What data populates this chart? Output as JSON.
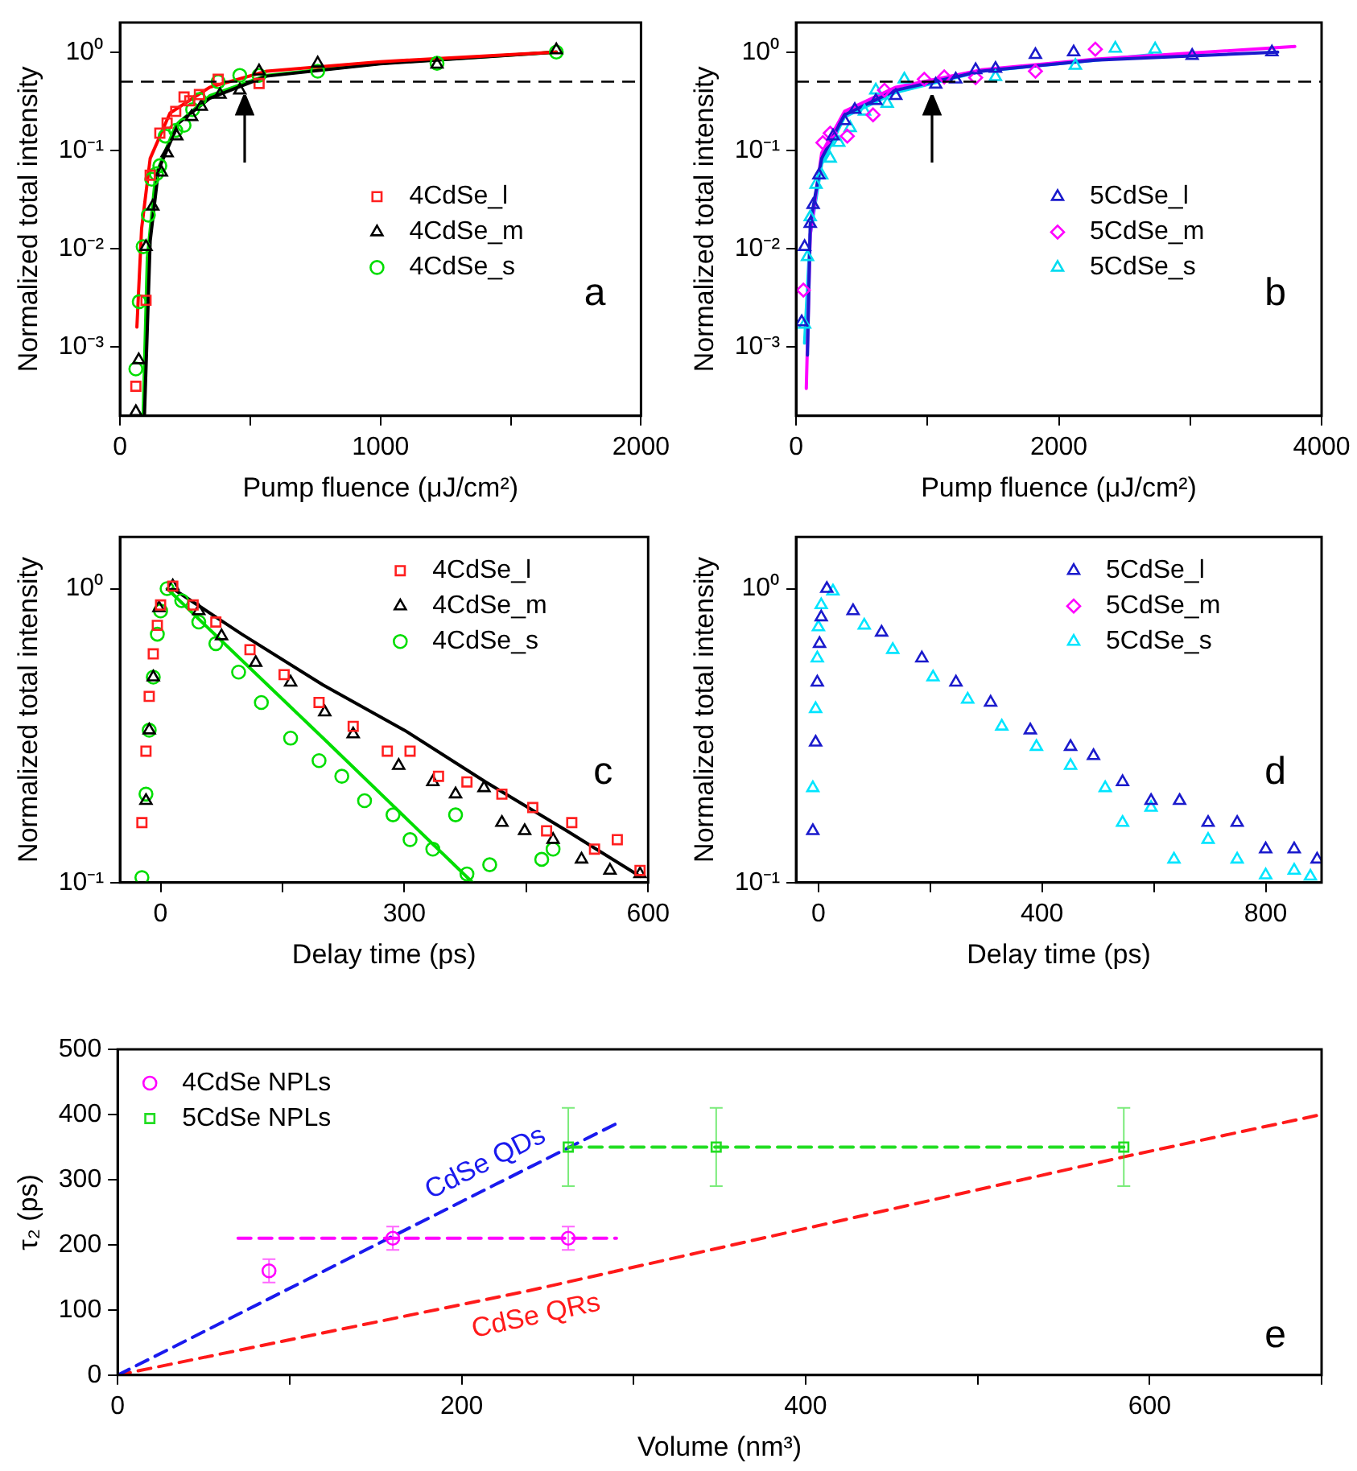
{
  "chart_data": [
    {
      "type": "scatter",
      "xlabel": "Pump fluence (μJ/cm²)",
      "ylabel": "Normalized total intensity",
      "log": "y",
      "legend": "right",
      "xlim": [
        0,
        2000
      ],
      "ylim": [
        0.0002,
        2
      ],
      "xticks": [
        0,
        {
          "value": 500,
          "label": null
        },
        1000,
        {
          "value": 1500,
          "label": null
        },
        2000
      ],
      "yticks": [
        {
          "value": 0.001,
          "label": "10⁻³"
        },
        {
          "value": 0.01,
          "label": "10⁻²"
        },
        {
          "value": 0.1,
          "label": "10⁻¹"
        },
        {
          "value": 1,
          "label": "10⁰"
        }
      ],
      "ref_lines": [
        {
          "axis": "y",
          "value": 0.5,
          "color": "#000000",
          "line_style": "dashed"
        }
      ],
      "annotations": [
        "a"
      ],
      "series": [
        {
          "type": "scatter",
          "name": "4CdSe_l",
          "color": "#ff2020",
          "marker": "square",
          "x": [
            61,
            100,
            116,
            153,
            181,
            214,
            246,
            268,
            305,
            377,
            534
          ],
          "values": [
            0.0004,
            0.003,
            0.056,
            0.15,
            0.19,
            0.25,
            0.35,
            0.32,
            0.37,
            0.53,
            0.48
          ]
        },
        {
          "type": "scatter",
          "name": "4CdSe_m",
          "color": "#000000",
          "marker": "triangle",
          "x": [
            61,
            72,
            100,
            126,
            159,
            181,
            218,
            275,
            312,
            384,
            460,
            534,
            759,
            1217,
            1675
          ],
          "values": [
            0.00022,
            0.00074,
            0.0105,
            0.027,
            0.06,
            0.094,
            0.14,
            0.22,
            0.28,
            0.37,
            0.41,
            0.64,
            0.77,
            0.75,
            1.05
          ]
        },
        {
          "type": "scatter",
          "name": "4CdSe_s",
          "color": "#00dd00",
          "marker": "circle",
          "x": [
            61,
            74,
            89,
            109,
            122,
            140,
            153,
            174,
            214,
            246,
            279,
            305,
            377,
            460,
            534,
            759,
            1217,
            1675
          ],
          "values": [
            0.0006,
            0.0029,
            0.0105,
            0.022,
            0.051,
            0.058,
            0.07,
            0.14,
            0.16,
            0.18,
            0.26,
            0.33,
            0.5,
            0.58,
            0.58,
            0.64,
            0.77,
            1.0
          ]
        },
        {
          "type": "line",
          "color": "#ff0000",
          "line_style": "solid",
          "x": [
            65,
            83,
            116,
            192,
            345,
            563,
            999,
            1675
          ],
          "values": [
            0.0016,
            0.016,
            0.083,
            0.24,
            0.44,
            0.64,
            0.8,
            1.0
          ]
        },
        {
          "type": "line",
          "color": "#000000",
          "line_style": "solid",
          "x": [
            94,
            116,
            148,
            225,
            345,
            563,
            999,
            1675
          ],
          "values": [
            0.0002,
            0.012,
            0.064,
            0.19,
            0.34,
            0.57,
            0.76,
            1.0
          ]
        },
        {
          "type": "line",
          "color": "#00dd00",
          "line_style": "solid",
          "x": [
            89,
            105,
            137,
            214,
            345,
            563,
            999,
            1675
          ],
          "values": [
            0.0002,
            0.008,
            0.056,
            0.18,
            0.36,
            0.58,
            0.77,
            1.0
          ]
        }
      ]
    },
    {
      "type": "scatter",
      "xlabel": "Pump fluence (μJ/cm²)",
      "ylabel": "Normalized total intensity",
      "log": "y",
      "legend": "right",
      "xlim": [
        0,
        4000
      ],
      "ylim": [
        0.0002,
        2
      ],
      "xticks": [
        0,
        {
          "value": 1000,
          "label": null
        },
        2000,
        {
          "value": 3000,
          "label": null
        },
        4000
      ],
      "yticks": [
        {
          "value": 0.001,
          "label": "10⁻³"
        },
        {
          "value": 0.01,
          "label": "10⁻²"
        },
        {
          "value": 0.1,
          "label": "10⁻¹"
        },
        {
          "value": 1,
          "label": "10⁰"
        }
      ],
      "ref_lines": [
        {
          "axis": "y",
          "value": 0.5,
          "color": "#000000",
          "line_style": "dashed"
        }
      ],
      "annotations": [
        "b"
      ],
      "series": [
        {
          "type": "scatter",
          "name": "5CdSe_l",
          "color": "#1a1acc",
          "marker": "triangle",
          "x": [
            43,
            65,
            108,
            130,
            174,
            282,
            369,
            447,
            607,
            759,
            1063,
            1215,
            1367,
            1518,
            1822,
            2113,
            3015,
            3622
          ],
          "values": [
            0.0018,
            0.0105,
            0.018,
            0.028,
            0.056,
            0.14,
            0.2,
            0.26,
            0.32,
            0.36,
            0.47,
            0.53,
            0.66,
            0.68,
            0.94,
            1.0,
            0.92,
            1.0
          ]
        },
        {
          "type": "scatter",
          "name": "5CdSe_m",
          "color": "#ff00ff",
          "marker": "diamond",
          "x": [
            56,
            204,
            260,
            390,
            586,
            673,
            976,
            1128,
            1367,
            1822,
            2278
          ],
          "values": [
            0.0038,
            0.12,
            0.15,
            0.14,
            0.23,
            0.41,
            0.53,
            0.56,
            0.55,
            0.64,
            1.07
          ]
        },
        {
          "type": "scatter",
          "name": "5CdSe_s",
          "color": "#00dcf0",
          "marker": "triangle",
          "x": [
            65,
            87,
            108,
            152,
            195,
            260,
            325,
            412,
            521,
            607,
            694,
            824,
            1518,
            2126,
            2430,
            2733
          ],
          "values": [
            0.0017,
            0.0083,
            0.021,
            0.045,
            0.056,
            0.083,
            0.12,
            0.17,
            0.25,
            0.41,
            0.3,
            0.53,
            0.56,
            0.73,
            1.09,
            1.07
          ]
        },
        {
          "type": "line",
          "color": "#1a1acc",
          "line_style": "solid",
          "x": [
            87,
            108,
            195,
            369,
            759,
            1410,
            2278,
            3666
          ],
          "values": [
            0.00083,
            0.018,
            0.083,
            0.23,
            0.41,
            0.64,
            0.83,
            1.0
          ]
        },
        {
          "type": "line",
          "color": "#ff00ff",
          "line_style": "solid",
          "x": [
            78,
            108,
            195,
            369,
            759,
            1410,
            2278,
            3796
          ],
          "values": [
            0.00038,
            0.014,
            0.094,
            0.25,
            0.44,
            0.66,
            0.85,
            1.14
          ]
        },
        {
          "type": "line",
          "color": "#00dcf0",
          "line_style": "solid",
          "x": [
            65,
            108,
            195,
            369,
            759,
            1410,
            2711
          ],
          "values": [
            0.0011,
            0.014,
            0.073,
            0.22,
            0.39,
            0.64,
            0.94
          ]
        }
      ]
    },
    {
      "type": "scatter",
      "xlabel": "Delay time (ps)",
      "ylabel": "Normalized total intensity",
      "log": "y",
      "legend": "top right",
      "xlim": [
        -50,
        600
      ],
      "ylim": [
        0.1,
        1.5
      ],
      "xticks": [
        0,
        {
          "value": 150,
          "label": null
        },
        300,
        {
          "value": 450,
          "label": null
        },
        600
      ],
      "yticks": [
        {
          "value": 0.1,
          "label": "10⁻¹"
        },
        {
          "value": 1,
          "label": "10⁰"
        }
      ],
      "annotations": [
        "c"
      ],
      "series": [
        {
          "type": "scatter",
          "name": "4CdSe_l",
          "color": "#ff2020",
          "marker": "square",
          "x": [
            -23,
            -18,
            -14,
            -9,
            -4,
            0,
            15,
            40,
            68,
            110,
            152,
            195,
            237,
            279,
            307,
            342,
            377,
            420,
            458,
            475,
            506,
            534,
            562,
            590
          ],
          "values": [
            0.16,
            0.28,
            0.43,
            0.6,
            0.75,
            0.88,
            1.02,
            0.88,
            0.77,
            0.62,
            0.51,
            0.41,
            0.34,
            0.28,
            0.28,
            0.23,
            0.22,
            0.2,
            0.18,
            0.15,
            0.16,
            0.13,
            0.14,
            0.11
          ]
        },
        {
          "type": "scatter",
          "name": "4CdSe_m",
          "color": "#000000",
          "marker": "triangle",
          "x": [
            -18,
            -14,
            -9,
            -2,
            15,
            47,
            75,
            117,
            160,
            202,
            237,
            293,
            335,
            363,
            398,
            420,
            448,
            483,
            518,
            553,
            590
          ],
          "values": [
            0.19,
            0.33,
            0.5,
            0.86,
            1.02,
            0.84,
            0.69,
            0.56,
            0.48,
            0.38,
            0.32,
            0.25,
            0.22,
            0.2,
            0.21,
            0.16,
            0.15,
            0.14,
            0.12,
            0.11,
            0.107
          ]
        },
        {
          "type": "scatter",
          "name": "4CdSe_s",
          "color": "#00dd00",
          "marker": "circle",
          "x": [
            -23,
            -18,
            -14,
            -9,
            -4,
            0,
            8,
            26,
            47,
            68,
            96,
            124,
            160,
            195,
            223,
            251,
            286,
            307,
            335,
            363,
            377,
            405,
            469,
            483
          ],
          "values": [
            0.104,
            0.2,
            0.33,
            0.5,
            0.7,
            0.84,
            1.0,
            0.91,
            0.77,
            0.65,
            0.52,
            0.41,
            0.31,
            0.26,
            0.23,
            0.19,
            0.17,
            0.14,
            0.13,
            0.17,
            0.107,
            0.115,
            0.12,
            0.13
          ]
        },
        {
          "type": "line",
          "color": "#000000",
          "line_style": "solid",
          "x": [
            15,
            100,
            200,
            300,
            400,
            500,
            590
          ],
          "values": [
            1.0,
            0.7,
            0.47,
            0.33,
            0.22,
            0.15,
            0.105
          ]
        },
        {
          "type": "line",
          "color": "#00dd00",
          "line_style": "solid",
          "x": [
            8,
            200,
            384
          ],
          "values": [
            1.0,
            0.31,
            0.1
          ]
        }
      ]
    },
    {
      "type": "scatter",
      "xlabel": "Delay time (ps)",
      "ylabel": "Normalized total intensity",
      "log": "y",
      "legend": "top right",
      "xlim": [
        -40,
        900
      ],
      "ylim": [
        0.1,
        1.5
      ],
      "xticks": [
        0,
        {
          "value": 200,
          "label": null
        },
        400,
        {
          "value": 600,
          "label": null
        },
        800
      ],
      "yticks": [
        {
          "value": 0.1,
          "label": "10⁻¹"
        },
        {
          "value": 1,
          "label": "10⁰"
        }
      ],
      "annotations": [
        "d"
      ],
      "series": [
        {
          "type": "scatter",
          "name": "5CdSe_l",
          "color": "#1a1acc",
          "marker": "triangle",
          "x": [
            -10,
            -5,
            -2,
            2,
            5,
            15,
            62,
            113,
            185,
            246,
            308,
            379,
            451,
            492,
            544,
            595,
            646,
            697,
            749,
            800,
            851,
            892
          ],
          "values": [
            0.15,
            0.3,
            0.48,
            0.65,
            0.8,
            1.0,
            0.84,
            0.71,
            0.58,
            0.48,
            0.41,
            0.33,
            0.29,
            0.27,
            0.22,
            0.19,
            0.19,
            0.16,
            0.16,
            0.13,
            0.13,
            0.12
          ]
        },
        {
          "type": "scatter",
          "name": "5CdSe_m",
          "color": "#ff00ff",
          "marker": "diamond"
        },
        {
          "type": "scatter",
          "name": "5CdSe_s",
          "color": "#00e5ff",
          "marker": "triangle",
          "x": [
            -10,
            -5,
            -2,
            0,
            5,
            26,
            82,
            133,
            205,
            267,
            328,
            390,
            451,
            513,
            544,
            595,
            636,
            697,
            749,
            800,
            851,
            880
          ],
          "values": [
            0.21,
            0.39,
            0.58,
            0.74,
            0.88,
            0.98,
            0.75,
            0.62,
            0.5,
            0.42,
            0.34,
            0.29,
            0.25,
            0.21,
            0.16,
            0.18,
            0.12,
            0.14,
            0.12,
            0.106,
            0.11,
            0.105
          ]
        }
      ]
    },
    {
      "type": "scatter",
      "xlabel": "Volume (nm³)",
      "ylabel": "τ₂ (ps)",
      "legend": "top left",
      "xlim": [
        0,
        700
      ],
      "ylim": [
        0,
        500
      ],
      "xticks": [
        0,
        {
          "value": 100,
          "label": null
        },
        200,
        {
          "value": 300,
          "label": null
        },
        400,
        {
          "value": 500,
          "label": null
        },
        600,
        {
          "value": 700,
          "label": null
        }
      ],
      "yticks": [
        0,
        100,
        200,
        300,
        400,
        500
      ],
      "annotations": [
        "e"
      ],
      "series": [
        {
          "type": "scatter",
          "name": "4CdSe NPLs",
          "color": "#ff00ff",
          "marker": "circle",
          "x": [
            88,
            160,
            262
          ],
          "values": [
            160,
            210,
            210
          ],
          "errors": [
            18,
            18,
            18
          ]
        },
        {
          "type": "scatter",
          "name": "5CdSe NPLs",
          "color": "#22dd22",
          "marker": "square",
          "x": [
            262,
            348,
            585
          ],
          "values": [
            350,
            350,
            350
          ],
          "errors": [
            60,
            60,
            60
          ]
        },
        {
          "type": "line",
          "color": "#ff00ff",
          "line_style": "dashed",
          "x": [
            70,
            290
          ],
          "values": [
            210,
            210
          ]
        },
        {
          "type": "line",
          "color": "#22dd22",
          "line_style": "dashed",
          "x": [
            262,
            585
          ],
          "values": [
            350,
            350
          ]
        },
        {
          "type": "line",
          "name": "CdSe QDs",
          "color": "#1a1aee",
          "line_style": "dashed",
          "x": [
            0,
            220,
            293
          ],
          "values": [
            0,
            293,
            390
          ]
        },
        {
          "type": "line",
          "name": "CdSe QRs",
          "color": "#ff1a1a",
          "line_style": "dashed",
          "x": [
            0,
            240,
            400,
            585,
            700
          ],
          "values": [
            0,
            130,
            225,
            335,
            400
          ]
        }
      ]
    }
  ]
}
